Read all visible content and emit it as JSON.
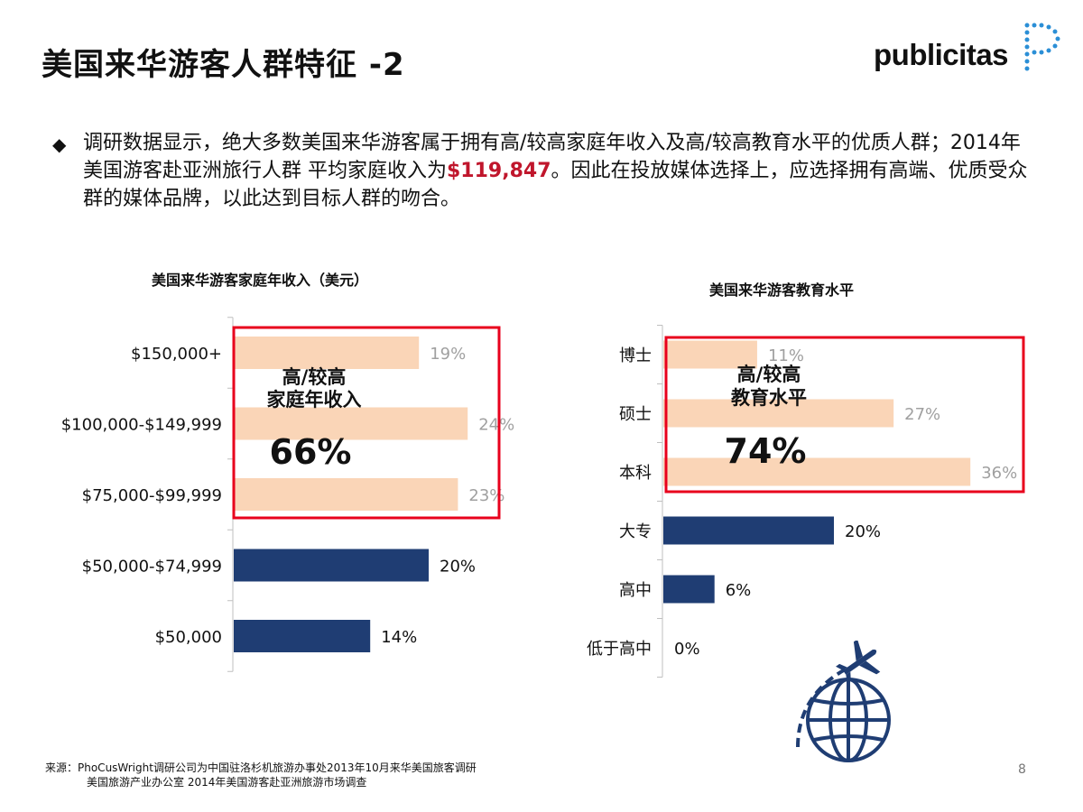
{
  "page": {
    "title": "美国来华游客人群特征 -2",
    "logo_text": "publicitas",
    "bullet_symbol": "◆",
    "body_part1": "调研数据显示，绝大多数美国来华游客属于拥有高/较高家庭年收入及高/较高教育水平的优质人群；2014年美国游客赴亚洲旅行人群 平均家庭收入为",
    "body_highlight": "$119,847",
    "body_part2": "。因此在投放媒体选择上，应选择拥有高端、优质受众群的媒体品牌，以此达到目标人群的吻合。",
    "footer_line1": "来源：PhoCusWright调研公司为中国驻洛杉机旅游办事处2013年10月来华美国旅客调研",
    "footer_line2": "美国旅游产业办公室 2014年美国游客赴亚洲旅游市场调查",
    "page_number": "8"
  },
  "colors": {
    "highlight_bar": "#fad5b7",
    "dark_bar": "#1f3d73",
    "highlight_box": "#e8001c",
    "accent_text": "#c0162c",
    "muted_label": "#a0a0a0"
  },
  "chart_data": [
    {
      "type": "bar",
      "orientation": "horizontal",
      "title": "美国来华游客家庭年收入（美元）",
      "categories": [
        "$150,000+",
        "$100,000-$149,999",
        "$75,000-$99,999",
        "$50,000-$74,999",
        "$50,000"
      ],
      "values": [
        19,
        24,
        23,
        20,
        14
      ],
      "value_labels": [
        "19%",
        "24%",
        "23%",
        "20%",
        "14%"
      ],
      "highlight_count": 3,
      "xlim": [
        0,
        40
      ],
      "annotation": {
        "label_line1": "高/较高",
        "label_line2": "家庭年收入",
        "value": "66%"
      }
    },
    {
      "type": "bar",
      "orientation": "horizontal",
      "title": "美国来华游客教育水平",
      "categories": [
        "博士",
        "硕士",
        "本科",
        "大专",
        "高中",
        "低于高中"
      ],
      "values": [
        11,
        27,
        36,
        20,
        6,
        0
      ],
      "value_labels": [
        "11%",
        "27%",
        "36%",
        "20%",
        "6%",
        "0%"
      ],
      "highlight_count": 3,
      "xlim": [
        0,
        40
      ],
      "annotation": {
        "label_line1": "高/较高",
        "label_line2": "教育水平",
        "value": "74%"
      }
    }
  ]
}
